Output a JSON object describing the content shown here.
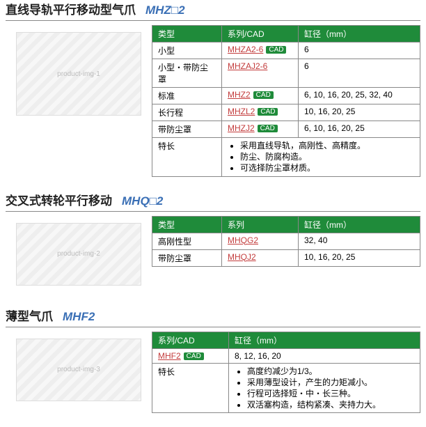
{
  "colors": {
    "header_bg": "#1f8b3a",
    "header_fg": "#ffffff",
    "series_link": "#c33c3c",
    "title_code": "#3a6fb5",
    "border": "#888888"
  },
  "labels": {
    "type": "类型",
    "series_cad": "系列/CAD",
    "series": "系列",
    "bore": "缸径（mm）",
    "features": "特长",
    "cad_badge": "CAD"
  },
  "sections": [
    {
      "title_zh": "直线导轨平行移动型气爪",
      "title_code": "MHZ□2",
      "col_series_label_key": "series_cad",
      "image_alt": "product-img-1",
      "rows": [
        {
          "type": "小型",
          "series": "MHZA2-6",
          "cad": true,
          "bore": "6"
        },
        {
          "type": "小型・带防尘罩",
          "series": "MHZAJ2-6",
          "cad": false,
          "bore": "6"
        },
        {
          "type": "标准",
          "series": "MHZ2",
          "cad": true,
          "bore": "6, 10, 16, 20, 25, 32, 40"
        },
        {
          "type": "长行程",
          "series": "MHZL2",
          "cad": true,
          "bore": "10, 16, 20, 25"
        },
        {
          "type": "带防尘罩",
          "series": "MHZJ2",
          "cad": true,
          "bore": "6, 10, 16, 20, 25"
        }
      ],
      "features": [
        "采用直线导轨，高刚性、高精度。",
        "防尘、防腐构造。",
        "可选择防尘罩材质。"
      ]
    },
    {
      "title_zh": "交叉式转轮平行移动",
      "title_code": "MHQ□2",
      "col_series_label_key": "series",
      "image_alt": "product-img-2",
      "rows": [
        {
          "type": "高刚性型",
          "series": "MHQG2",
          "cad": false,
          "bore": "32, 40"
        },
        {
          "type": "带防尘罩",
          "series": "MHQJ2",
          "cad": false,
          "bore": "10, 16, 20, 25"
        }
      ],
      "features": null
    },
    {
      "title_zh": "薄型气爪",
      "title_code": "MHF2",
      "col_series_label_key": "series_cad",
      "image_alt": "product-img-3",
      "no_type_col": true,
      "rows": [
        {
          "series": "MHF2",
          "cad": true,
          "bore": "8, 12, 16, 20"
        }
      ],
      "features": [
        "高度约减少为1/3。",
        "采用薄型设计，产生的力矩减小。",
        "行程可选择短・中・长三种。",
        "双活塞构造，结构紧凑、夹持力大。"
      ]
    }
  ]
}
